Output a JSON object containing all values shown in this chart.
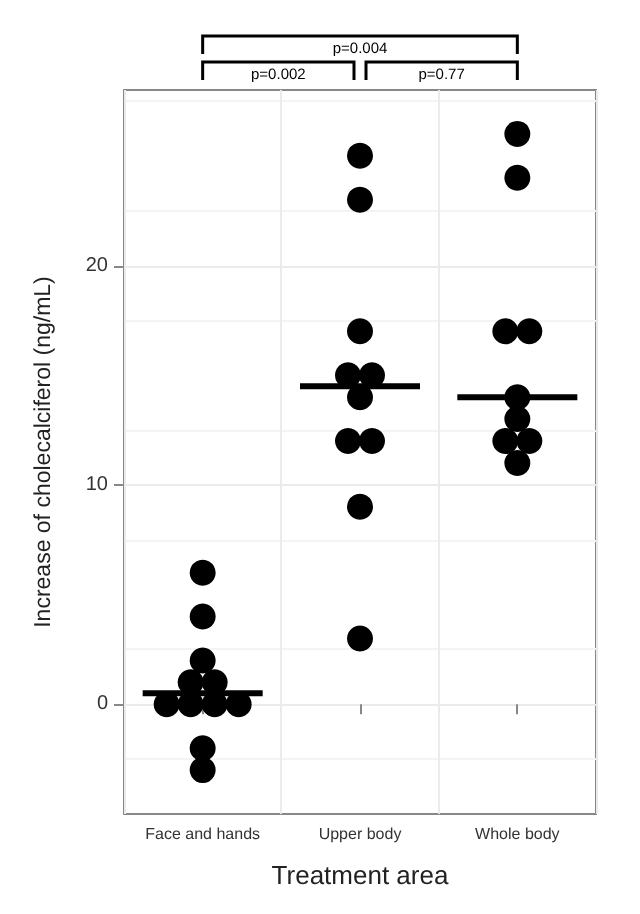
{
  "chart_data": {
    "type": "scatter",
    "xlabel": "Treatment area",
    "ylabel": "Increase of cholecalciferol (ng/mL)",
    "categories": [
      "Face and hands",
      "Upper body",
      "Whole body"
    ],
    "series": [
      {
        "color": "#000000",
        "marker": "circle",
        "x": [
          "Face and hands",
          "Face and hands",
          "Face and hands",
          "Face and hands",
          "Face and hands",
          "Face and hands",
          "Face and hands",
          "Face and hands",
          "Face and hands",
          "Face and hands",
          "Face and hands",
          "Upper body",
          "Upper body",
          "Upper body",
          "Upper body",
          "Upper body",
          "Upper body",
          "Upper body",
          "Upper body",
          "Upper body",
          "Upper body",
          "Whole body",
          "Whole body",
          "Whole body",
          "Whole body",
          "Whole body",
          "Whole body",
          "Whole body",
          "Whole body",
          "Whole body"
        ],
        "values": [
          6,
          4,
          2,
          1,
          1,
          0,
          0,
          0,
          0,
          -2,
          -3,
          25,
          23,
          17,
          15,
          15,
          14,
          12,
          12,
          9,
          3,
          26,
          24,
          17,
          17,
          14,
          13,
          12,
          12,
          11
        ]
      },
      {
        "type": "box",
        "color": "#000000",
        "boxes": [
          {
            "low": 0.5,
            "q1": 0.5,
            "median": 0.5,
            "q3": 0.5,
            "high": 0.5
          },
          {
            "low": 14.5,
            "q1": 14.5,
            "median": 14.5,
            "q3": 14.5,
            "high": 14.5
          },
          {
            "low": 14,
            "q1": 14,
            "median": 14,
            "q3": 14,
            "high": 14
          }
        ]
      }
    ],
    "ylim": [
      -5,
      28
    ],
    "yticks": [
      0,
      10,
      20
    ],
    "grid": true,
    "annotations": [
      "p=0.002",
      "p=0.77",
      "p=0.004"
    ]
  }
}
